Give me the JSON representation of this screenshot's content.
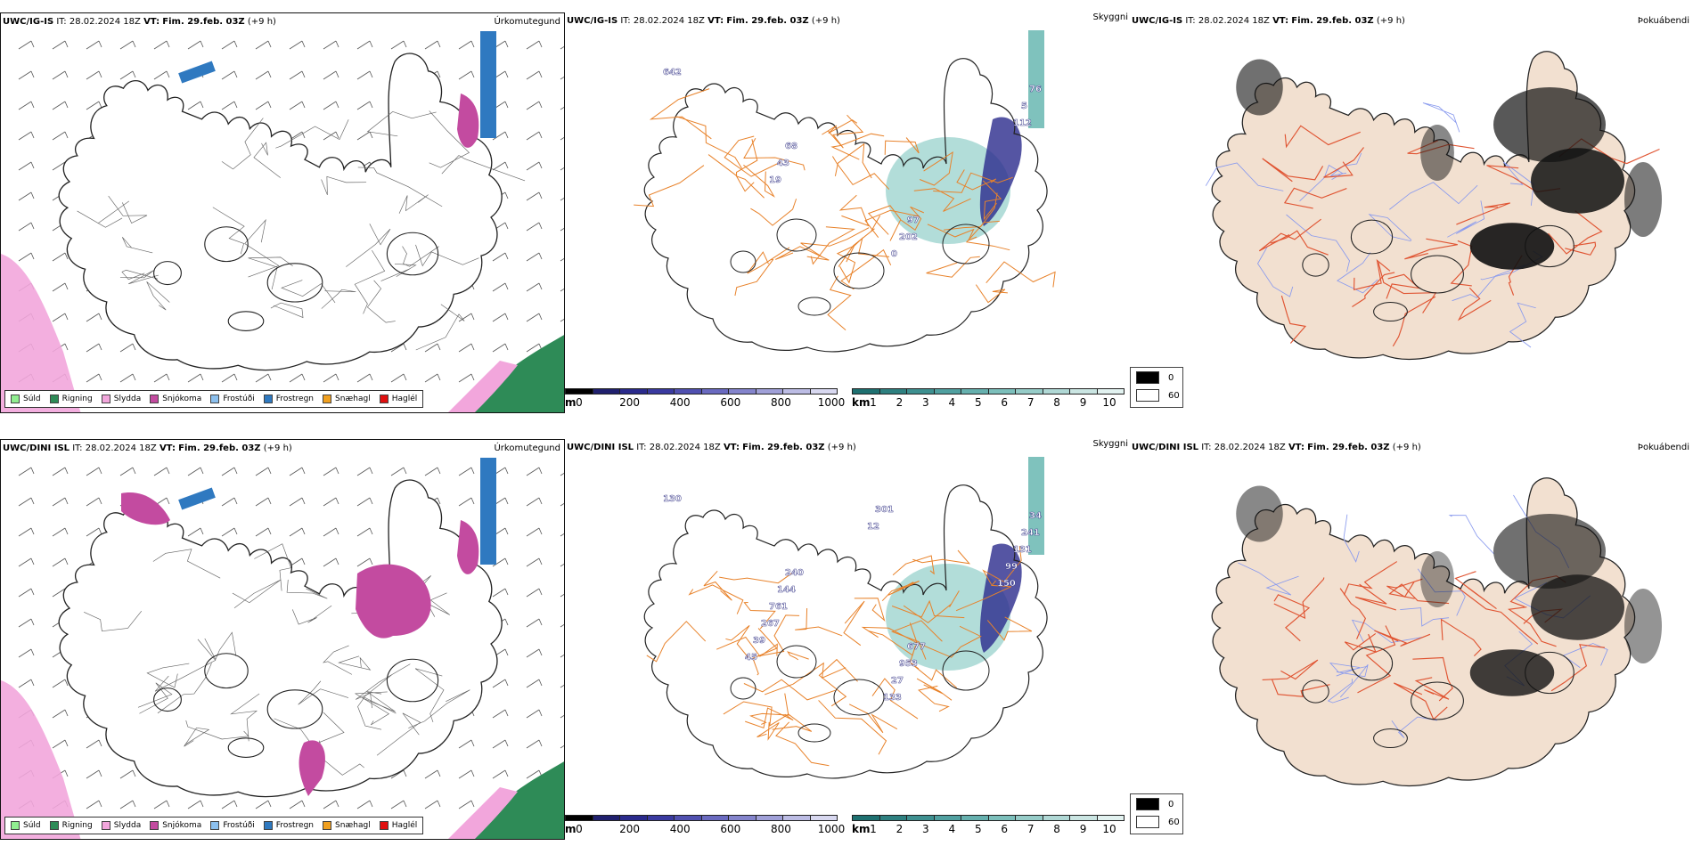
{
  "rows": [
    {
      "precip": {
        "model": "UWC/IG-IS",
        "it_label": "IT:",
        "it_value": "28.02.2024 18Z",
        "vt_label": "VT:",
        "vt_value": "Fim. 29.feb. 03Z",
        "lead": "(+9 h)",
        "title": "Úrkomutegund"
      },
      "visibility": {
        "model": "UWC/IG-IS",
        "it_label": "IT:",
        "it_value": "28.02.2024 18Z",
        "vt_label": "VT:",
        "vt_value": "Fim. 29.feb. 03Z",
        "lead": "(+9 h)",
        "title": "Skyggni",
        "labels": [
          "642",
          "68",
          "97",
          "76",
          "43",
          "202",
          "5",
          "19",
          "0",
          "112"
        ]
      },
      "fog": {
        "model": "UWC/IG-IS",
        "it_label": "IT:",
        "it_value": "28.02.2024 18Z",
        "vt_label": "VT:",
        "vt_value": "Fim. 29.feb. 03Z",
        "lead": "(+9 h)",
        "title": "Þokuábendi"
      }
    },
    {
      "precip": {
        "model": "UWC/DINI ISL",
        "it_label": "IT:",
        "it_value": "28.02.2024 18Z",
        "vt_label": "VT:",
        "vt_value": "Fim. 29.feb. 03Z",
        "lead": "(+9 h)",
        "title": "Úrkomutegund"
      },
      "visibility": {
        "model": "UWC/DINI ISL",
        "it_label": "IT:",
        "it_value": "28.02.2024 18Z",
        "vt_label": "VT:",
        "vt_value": "Fim. 29.feb. 03Z",
        "lead": "(+9 h)",
        "title": "Skyggni",
        "labels": [
          "130",
          "240",
          "677",
          "34",
          "144",
          "953",
          "241",
          "761",
          "27",
          "131",
          "267",
          "133",
          "99",
          "39",
          "301",
          "150",
          "45",
          "12"
        ]
      },
      "fog": {
        "model": "UWC/DINI ISL",
        "it_label": "IT:",
        "it_value": "28.02.2024 18Z",
        "vt_label": "VT:",
        "vt_value": "Fim. 29.feb. 03Z",
        "lead": "(+9 h)",
        "title": "Þokuábendi"
      }
    }
  ],
  "precip_legend": [
    {
      "label": "Súld",
      "color": "#90ee90"
    },
    {
      "label": "Rigning",
      "color": "#2e8b57"
    },
    {
      "label": "Slydda",
      "color": "#f2a6dc"
    },
    {
      "label": "Snjókoma",
      "color": "#c34ba0"
    },
    {
      "label": "Frostúði",
      "color": "#8cc0ee"
    },
    {
      "label": "Frostregn",
      "color": "#2f79c0"
    },
    {
      "label": "Snæhagl",
      "color": "#f0a020"
    },
    {
      "label": "Haglél",
      "color": "#e01010"
    }
  ],
  "vis_bar_m": {
    "unit": "m",
    "ticks": [
      "0",
      "200",
      "400",
      "600",
      "800",
      "1000"
    ],
    "colors": [
      "#000000",
      "#20206e",
      "#2a2a8c",
      "#3a3aa0",
      "#5050b0",
      "#6a6ac0",
      "#8484cc",
      "#a0a0d8",
      "#bcbce4",
      "#d8d8f0"
    ]
  },
  "vis_bar_km": {
    "unit": "km",
    "ticks": [
      "1",
      "2",
      "3",
      "4",
      "5",
      "6",
      "7",
      "8",
      "9",
      "10"
    ],
    "colors": [
      "#1e7070",
      "#2e8080",
      "#3e9090",
      "#50a0a0",
      "#66b0ae",
      "#7cbfbb",
      "#96ccc8",
      "#b0d8d5",
      "#cae5e2",
      "#e2f2f0"
    ]
  },
  "fog_legend": [
    {
      "label": "0",
      "color": "#000000"
    },
    {
      "label": "60",
      "color": "#ffffff"
    }
  ],
  "colors": {
    "ocean_bg": "#ffffff",
    "land_fog": "#f2e0d0",
    "roads": "#e8822a",
    "rivers": "#8899ee",
    "coast": "#222222"
  }
}
